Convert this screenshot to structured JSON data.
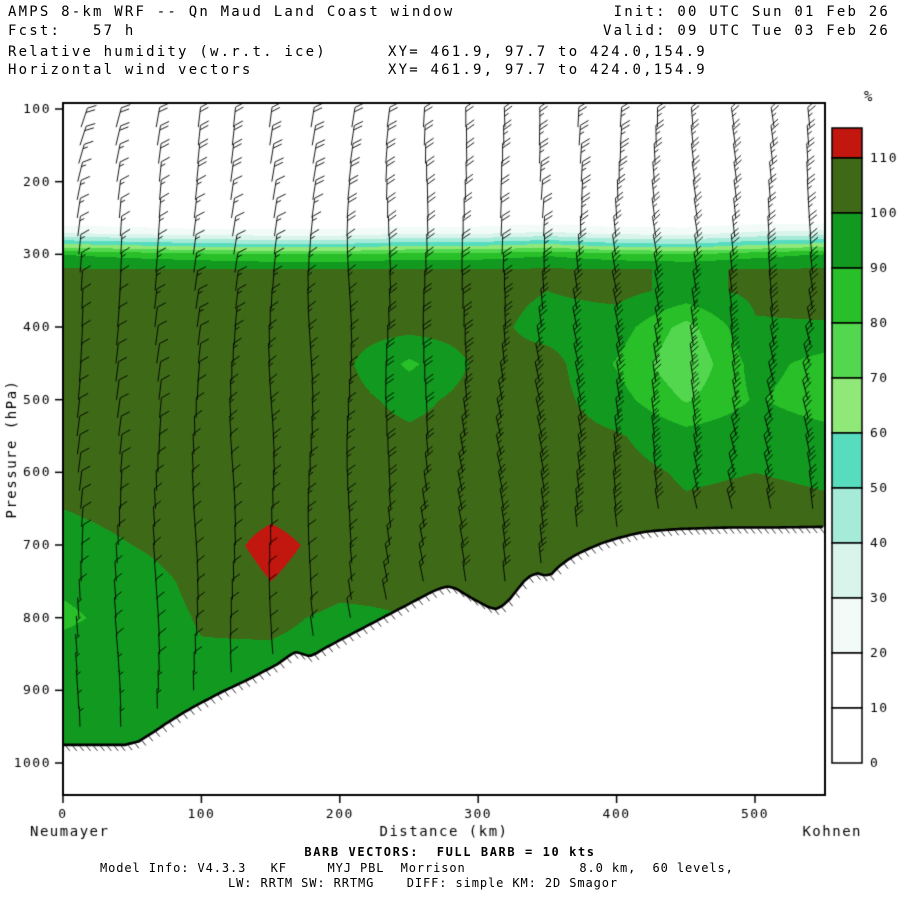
{
  "header": {
    "title": "AMPS 8-km WRF -- Qn Maud Land Coast window",
    "init_time": "Init: 00 UTC Sun 01 Feb 26",
    "fcst_hour": "Fcst:   57 h",
    "valid_time": "Valid: 09 UTC Tue 03 Feb 26",
    "field_name": "Relative humidity (w.r.t. ice)",
    "xy_range_1": "XY= 461.9, 97.7 to 424.0,154.9",
    "vector_name": "Horizontal wind vectors",
    "xy_range_2": "XY= 461.9, 97.7 to 424.0,154.9"
  },
  "footer": {
    "barb_legend": "BARB VECTORS:  FULL BARB = 10 kts",
    "model_info": "Model Info: V4.3.3   KF     MYJ PBL  Morrison              8.0 km,  60 levels,",
    "physics_info": "LW: RRTM SW: RRTMG    DIFF: simple KM: 2D Smagor"
  },
  "chart_data": {
    "type": "heatmap",
    "title": "Relative humidity (w.r.t. ice) with horizontal wind vectors, vertical cross-section",
    "xlabel": "Distance (km)",
    "ylabel": "Pressure (hPa)",
    "station_left": "Neumayer",
    "station_right": "Kohnen",
    "xlim": [
      0,
      550
    ],
    "ylim": [
      1044,
      92
    ],
    "x_ticks": [
      0,
      100,
      200,
      300,
      400,
      500
    ],
    "y_ticks": [
      100,
      200,
      300,
      400,
      500,
      600,
      700,
      800,
      900,
      1000
    ],
    "colorbar": {
      "units_label": "%",
      "tick_labels": [
        110,
        100,
        90,
        80,
        70,
        60,
        50,
        40,
        30,
        20,
        10,
        0
      ],
      "colors_low_to_high": [
        "#FFFFFF",
        "#FFFFFF",
        "#F2FBF8",
        "#D8F4EB",
        "#A6EAD8",
        "#58DCBE",
        "#8FE878",
        "#52D74E",
        "#28BF28",
        "#129A20",
        "#3E6A18"
      ],
      "over_color": "#C2170E"
    },
    "rh_grid": {
      "x_km": [
        0,
        50,
        100,
        150,
        200,
        250,
        300,
        350,
        400,
        450,
        500,
        550
      ],
      "p_hPa": [
        100,
        150,
        200,
        250,
        270,
        285,
        300,
        320,
        350,
        400,
        450,
        500,
        550,
        600,
        650,
        700,
        750,
        800,
        850,
        900,
        950,
        1000,
        1050
      ],
      "values": [
        [
          4,
          4,
          4,
          4,
          4,
          4,
          4,
          4,
          4,
          4,
          4,
          4
        ],
        [
          4,
          4,
          4,
          4,
          4,
          4,
          4,
          4,
          4,
          4,
          4,
          4
        ],
        [
          5,
          5,
          5,
          5,
          5,
          5,
          5,
          5,
          5,
          5,
          5,
          5
        ],
        [
          10,
          10,
          9,
          9,
          9,
          10,
          10,
          12,
          10,
          10,
          12,
          12
        ],
        [
          30,
          27,
          24,
          24,
          24,
          28,
          28,
          32,
          27,
          26,
          32,
          34
        ],
        [
          60,
          56,
          52,
          50,
          50,
          55,
          55,
          60,
          52,
          50,
          57,
          62
        ],
        [
          90,
          87,
          84,
          81,
          81,
          85,
          85,
          89,
          84,
          81,
          87,
          91
        ],
        [
          101,
          100,
          100,
          100,
          100,
          100,
          100,
          101,
          100,
          100,
          100,
          101
        ],
        [
          104,
          104,
          104,
          104,
          104,
          104,
          104,
          100,
          103,
          97,
          102,
          104
        ],
        [
          105,
          105,
          105,
          104,
          104,
          103,
          104,
          96,
          95,
          76,
          99,
          99
        ],
        [
          105,
          105,
          105,
          104,
          103,
          88,
          102,
          104,
          89,
          71,
          94,
          86
        ],
        [
          105,
          105,
          105,
          104,
          104,
          97,
          104,
          104,
          94,
          79,
          91,
          84
        ],
        [
          104,
          105,
          105,
          105,
          104,
          102,
          104,
          104,
          101,
          94,
          97,
          94
        ],
        [
          103,
          104,
          105,
          105,
          104,
          104,
          104,
          104,
          103,
          99,
          100,
          99
        ],
        [
          100,
          103,
          105,
          108,
          105,
          104,
          104,
          104,
          103,
          101,
          102,
          101
        ],
        [
          96,
          100,
          105,
          113,
          106,
          104,
          104,
          104,
          103,
          102,
          103,
          102
        ],
        [
          92,
          95,
          103,
          110,
          104,
          103,
          103,
          104,
          103,
          103,
          103,
          103
        ],
        [
          88,
          94,
          101,
          103,
          97,
          100,
          102,
          103,
          103,
          103,
          103,
          103
        ],
        [
          94,
          97,
          99,
          98,
          95,
          98,
          101,
          103,
          103,
          103,
          103,
          103
        ],
        [
          97,
          99,
          98,
          96,
          94,
          99,
          102,
          103,
          103,
          103,
          103,
          103
        ],
        [
          99,
          100,
          97,
          95,
          94,
          100,
          103,
          103,
          103,
          103,
          103,
          103
        ],
        [
          100,
          100,
          97,
          95,
          94,
          100,
          103,
          103,
          103,
          103,
          103,
          103
        ],
        [
          100,
          100,
          97,
          95,
          94,
          100,
          103,
          103,
          103,
          103,
          103,
          103
        ]
      ]
    },
    "terrain_profile_km_hPa": [
      [
        0,
        975
      ],
      [
        45,
        975
      ],
      [
        55,
        970
      ],
      [
        65,
        958
      ],
      [
        75,
        945
      ],
      [
        85,
        933
      ],
      [
        95,
        922
      ],
      [
        105,
        912
      ],
      [
        115,
        902
      ],
      [
        125,
        893
      ],
      [
        135,
        884
      ],
      [
        145,
        874
      ],
      [
        155,
        864
      ],
      [
        163,
        853
      ],
      [
        168,
        847
      ],
      [
        173,
        850
      ],
      [
        178,
        853
      ],
      [
        183,
        849
      ],
      [
        190,
        841
      ],
      [
        200,
        831
      ],
      [
        210,
        821
      ],
      [
        220,
        811
      ],
      [
        230,
        801
      ],
      [
        240,
        791
      ],
      [
        250,
        781
      ],
      [
        258,
        773
      ],
      [
        266,
        765
      ],
      [
        272,
        760
      ],
      [
        278,
        757
      ],
      [
        284,
        760
      ],
      [
        290,
        767
      ],
      [
        296,
        774
      ],
      [
        302,
        780
      ],
      [
        308,
        786
      ],
      [
        313,
        788
      ],
      [
        318,
        783
      ],
      [
        323,
        774
      ],
      [
        328,
        762
      ],
      [
        333,
        750
      ],
      [
        338,
        742
      ],
      [
        343,
        739
      ],
      [
        348,
        742
      ],
      [
        353,
        740
      ],
      [
        358,
        730
      ],
      [
        365,
        720
      ],
      [
        372,
        712
      ],
      [
        380,
        705
      ],
      [
        390,
        697
      ],
      [
        400,
        691
      ],
      [
        410,
        686
      ],
      [
        420,
        682
      ],
      [
        430,
        680
      ],
      [
        445,
        678
      ],
      [
        460,
        677
      ],
      [
        480,
        676
      ],
      [
        510,
        676
      ],
      [
        550,
        675
      ]
    ],
    "wind": {
      "barb_full_kts": 10,
      "columns_km": [
        12,
        40,
        68,
        96,
        123,
        151,
        179,
        207,
        235,
        262,
        290,
        318,
        346,
        373,
        401,
        429,
        457,
        485,
        512,
        540
      ],
      "level_min_hPa": 125,
      "level_step_hPa": 25,
      "grid_x_km": [
        0,
        50,
        100,
        150,
        200,
        250,
        300,
        350,
        400,
        450,
        500,
        550
      ],
      "grid_p_hPa": [
        150,
        250,
        350,
        450,
        550,
        650,
        750,
        850,
        950
      ],
      "speed_kts": [
        [
          18,
          18,
          20,
          20,
          22,
          22,
          22,
          24,
          24,
          25,
          25,
          25
        ],
        [
          15,
          15,
          16,
          16,
          18,
          18,
          20,
          22,
          24,
          26,
          26,
          26
        ],
        [
          12,
          12,
          14,
          14,
          16,
          18,
          22,
          26,
          30,
          32,
          30,
          30
        ],
        [
          10,
          12,
          12,
          14,
          16,
          20,
          25,
          30,
          34,
          36,
          34,
          32
        ],
        [
          10,
          10,
          12,
          14,
          16,
          20,
          26,
          30,
          34,
          35,
          33,
          30
        ],
        [
          8,
          10,
          10,
          12,
          15,
          18,
          24,
          28,
          30,
          30,
          28,
          26
        ],
        [
          8,
          8,
          10,
          10,
          12,
          15,
          20,
          24,
          26,
          26,
          24,
          22
        ],
        [
          6,
          8,
          8,
          10,
          10,
          12,
          15,
          18,
          20,
          20,
          20,
          20
        ],
        [
          5,
          6,
          6,
          8,
          8,
          10,
          12,
          15,
          15,
          15,
          15,
          15
        ]
      ],
      "tilt_deg": [
        [
          15,
          12,
          10,
          8,
          5,
          5,
          3,
          0,
          0,
          -3,
          -5,
          -5
        ],
        [
          10,
          8,
          8,
          5,
          5,
          3,
          0,
          0,
          -3,
          -5,
          -5,
          -8
        ],
        [
          8,
          5,
          5,
          3,
          0,
          0,
          -3,
          -5,
          -8,
          -10,
          -10,
          -10
        ],
        [
          5,
          5,
          3,
          0,
          0,
          -3,
          -5,
          -8,
          -10,
          -12,
          -12,
          -12
        ],
        [
          5,
          3,
          0,
          0,
          -3,
          -5,
          -8,
          -10,
          -10,
          -12,
          -12,
          -10
        ],
        [
          3,
          0,
          0,
          -3,
          -5,
          -5,
          -8,
          -10,
          -10,
          -10,
          -10,
          -8
        ],
        [
          0,
          0,
          -3,
          -5,
          -5,
          -8,
          -8,
          -10,
          -8,
          -8,
          -8,
          -5
        ],
        [
          0,
          -3,
          -5,
          -5,
          -8,
          -8,
          -8,
          -8,
          -5,
          -5,
          -5,
          -5
        ],
        [
          0,
          -5,
          -5,
          -8,
          -8,
          -8,
          -5,
          -5,
          -5,
          -5,
          -5,
          -5
        ]
      ]
    }
  }
}
